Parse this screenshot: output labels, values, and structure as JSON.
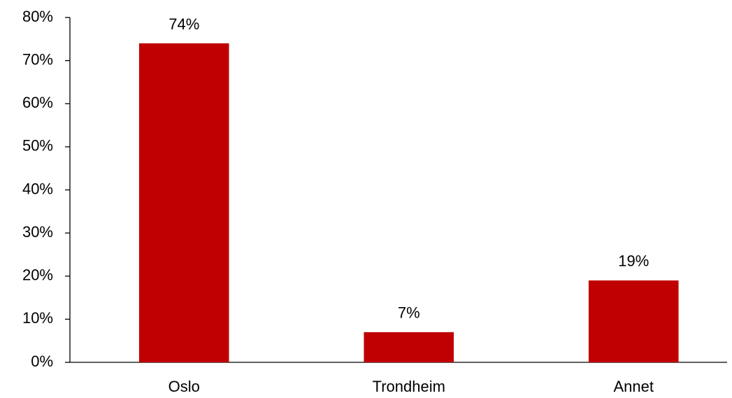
{
  "chart_data": {
    "type": "bar",
    "categories": [
      "Oslo",
      "Trondheim",
      "Annet"
    ],
    "values": [
      74,
      7,
      19
    ],
    "value_labels": [
      "74%",
      "7%",
      "19%"
    ],
    "color": "#c00000",
    "ylim": [
      0,
      80
    ],
    "yticks": [
      {
        "value": 0,
        "label": "0%"
      },
      {
        "value": 10,
        "label": "10%"
      },
      {
        "value": 20,
        "label": "20%"
      },
      {
        "value": 30,
        "label": "30%"
      },
      {
        "value": 40,
        "label": "40%"
      },
      {
        "value": 50,
        "label": "50%"
      },
      {
        "value": 60,
        "label": "60%"
      },
      {
        "value": 70,
        "label": "70%"
      },
      {
        "value": 80,
        "label": "80%"
      }
    ],
    "grid": false
  }
}
